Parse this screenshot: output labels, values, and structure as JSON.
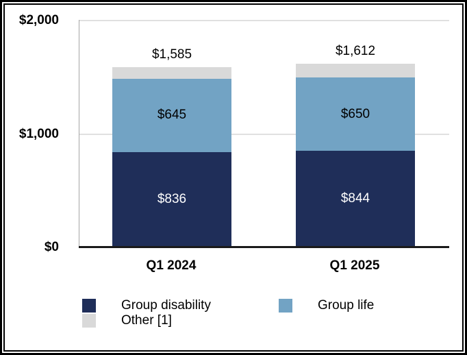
{
  "chart_data": {
    "type": "bar",
    "variant": "stacked-column",
    "title": "",
    "categories": [
      "Q1 2024",
      "Q1 2025"
    ],
    "series": [
      {
        "name": "Group disability",
        "color": "#1F2E59",
        "values": [
          836,
          844
        ],
        "labels": [
          "$836",
          "$844"
        ],
        "label_color": "#FFFFFF"
      },
      {
        "name": "Group life",
        "color": "#72A3C4",
        "values": [
          645,
          650
        ],
        "labels": [
          "$645",
          "$650"
        ],
        "label_color": "#000000"
      },
      {
        "name": "Other [1]",
        "color": "#D9D9D9",
        "values": [
          104,
          118
        ],
        "labels": [
          "",
          ""
        ],
        "label_color": "#000000"
      }
    ],
    "totals": {
      "values": [
        1585,
        1612
      ],
      "labels": [
        "$1,585",
        "$1,612"
      ]
    },
    "y_axis": {
      "min": 0,
      "max": 2000,
      "ticks": [
        {
          "value": 0,
          "label": "$0"
        },
        {
          "value": 1000,
          "label": "$1,000"
        },
        {
          "value": 2000,
          "label": "$2,000"
        }
      ]
    },
    "legend": {
      "position": "bottom",
      "items": [
        {
          "label": "Group disability",
          "color": "#1F2E59"
        },
        {
          "label": "Group life",
          "color": "#72A3C4"
        },
        {
          "label": "Other [1]",
          "color": "#D9D9D9"
        }
      ]
    },
    "grid": "horizontal-gridlines",
    "frame_color": "#000000",
    "axis_line_color": "#A6A6A6",
    "baseline_color": "#1A1A1A"
  }
}
